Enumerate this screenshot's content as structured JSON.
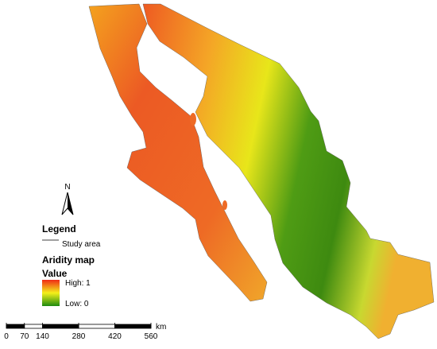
{
  "map": {
    "north": "N",
    "legend": {
      "title": "Legend",
      "study_area": "Study area",
      "layer": "Aridity map",
      "field": "Value",
      "high": "High: 1",
      "low": "Low: 0"
    },
    "scale": {
      "unit": "km",
      "ticks": [
        0,
        70,
        140,
        280,
        420,
        560
      ]
    }
  }
}
